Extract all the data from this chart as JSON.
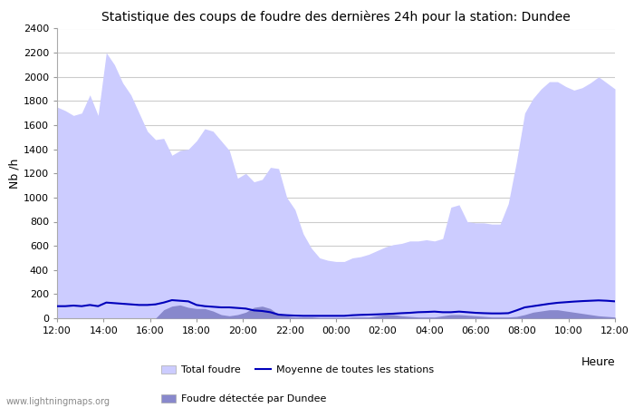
{
  "title": "Statistique des coups de foudre des dernières 24h pour la station: Dundee",
  "xlabel": "Heure",
  "ylabel": "Nb /h",
  "ylim": [
    0,
    2400
  ],
  "yticks": [
    0,
    200,
    400,
    600,
    800,
    1000,
    1200,
    1400,
    1600,
    1800,
    2000,
    2200,
    2400
  ],
  "x_labels": [
    "12:00",
    "14:00",
    "16:00",
    "18:00",
    "20:00",
    "22:00",
    "00:00",
    "02:00",
    "04:00",
    "06:00",
    "08:00",
    "10:00",
    "12:00"
  ],
  "watermark": "www.lightningmaps.org",
  "total_foudre_color": "#ccccff",
  "dundee_color": "#8888cc",
  "moyenne_color": "#0000bb",
  "total_foudre": [
    1750,
    1720,
    1680,
    1700,
    1850,
    1680,
    2200,
    2100,
    1950,
    1850,
    1700,
    1550,
    1480,
    1490,
    1350,
    1390,
    1400,
    1470,
    1570,
    1550,
    1470,
    1390,
    1160,
    1200,
    1130,
    1150,
    1250,
    1240,
    1000,
    900,
    700,
    580,
    500,
    480,
    470,
    470,
    500,
    510,
    530,
    560,
    590,
    610,
    620,
    640,
    640,
    650,
    640,
    660,
    920,
    940,
    800,
    790,
    790,
    780,
    780,
    950,
    1300,
    1700,
    1820,
    1900,
    1960,
    1960,
    1920,
    1890,
    1910,
    1950,
    2000,
    1950,
    1900
  ],
  "dundee_foudre": [
    0,
    0,
    0,
    0,
    0,
    0,
    0,
    0,
    0,
    0,
    0,
    0,
    0,
    70,
    100,
    110,
    90,
    80,
    80,
    60,
    30,
    20,
    30,
    50,
    90,
    100,
    80,
    30,
    20,
    10,
    10,
    10,
    5,
    5,
    5,
    5,
    10,
    10,
    10,
    20,
    30,
    30,
    20,
    15,
    10,
    10,
    10,
    20,
    30,
    30,
    25,
    20,
    15,
    10,
    10,
    10,
    15,
    30,
    50,
    60,
    70,
    70,
    60,
    50,
    40,
    30,
    20,
    15,
    10
  ],
  "moyenne": [
    100,
    100,
    105,
    100,
    110,
    100,
    130,
    125,
    120,
    115,
    110,
    110,
    115,
    130,
    150,
    145,
    140,
    110,
    100,
    95,
    90,
    90,
    85,
    80,
    65,
    60,
    50,
    30,
    25,
    22,
    20,
    20,
    20,
    20,
    20,
    20,
    25,
    28,
    30,
    32,
    35,
    38,
    42,
    45,
    50,
    52,
    55,
    50,
    50,
    55,
    50,
    45,
    42,
    40,
    40,
    42,
    65,
    90,
    100,
    110,
    120,
    128,
    133,
    138,
    142,
    145,
    148,
    145,
    140
  ]
}
